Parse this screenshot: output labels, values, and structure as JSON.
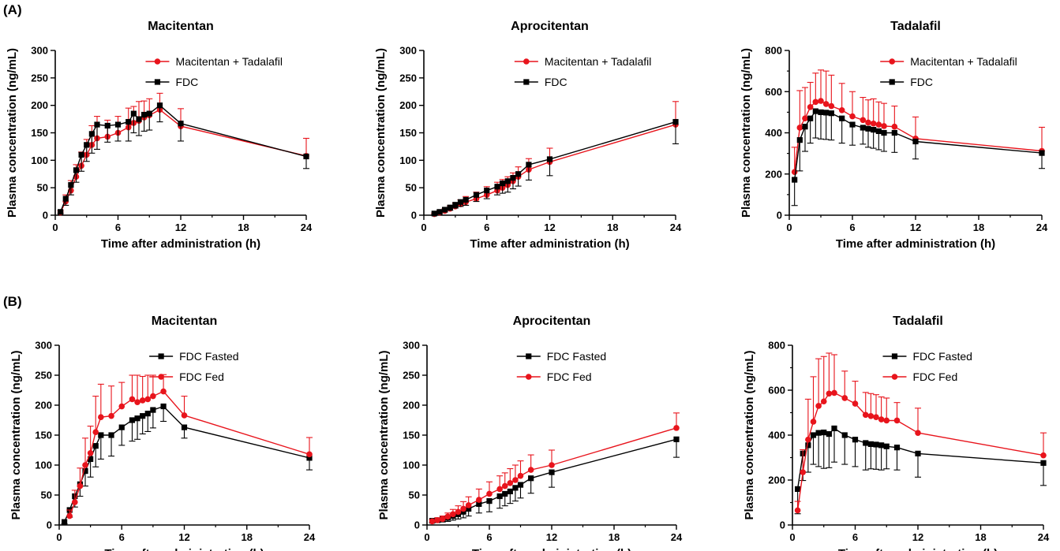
{
  "panel_labels": [
    "(A)",
    "(B)"
  ],
  "colors": {
    "red": "#e8141c",
    "black": "#000000"
  },
  "chart_data": [
    {
      "type": "line",
      "title": "Macitentan",
      "xlabel": "Time after administration  (h)",
      "ylabel": "Plasma concentration  (ng/mL)",
      "xlim": [
        0,
        24
      ],
      "ylim": [
        0,
        300
      ],
      "xticks": [
        0,
        6,
        12,
        18,
        24
      ],
      "yticks": [
        0,
        50,
        100,
        150,
        200,
        250,
        300
      ],
      "legend_position": "top-right",
      "series": [
        {
          "name": "Macitentan + Tadalafil",
          "color": "#e8141c",
          "marker": "circle",
          "error": "up",
          "x": [
            0.5,
            1,
            1.5,
            2,
            2.5,
            3,
            3.5,
            4,
            5,
            6,
            7,
            7.5,
            8,
            8.5,
            9,
            10,
            12,
            24
          ],
          "y": [
            5,
            25,
            45,
            70,
            90,
            110,
            128,
            140,
            143,
            150,
            160,
            168,
            172,
            178,
            182,
            192,
            162,
            108
          ],
          "err": [
            3,
            12,
            18,
            22,
            25,
            28,
            35,
            40,
            30,
            30,
            35,
            30,
            35,
            30,
            30,
            30,
            32,
            32
          ]
        },
        {
          "name": "FDC",
          "color": "#000000",
          "marker": "square",
          "error": "down",
          "x": [
            0.5,
            1,
            1.5,
            2,
            2.5,
            3,
            3.5,
            4,
            5,
            6,
            7,
            7.5,
            8,
            8.5,
            9,
            10,
            12,
            24
          ],
          "y": [
            6,
            30,
            55,
            82,
            110,
            128,
            148,
            165,
            163,
            165,
            170,
            185,
            175,
            183,
            185,
            200,
            167,
            107
          ],
          "err": [
            3,
            12,
            18,
            22,
            30,
            30,
            35,
            45,
            30,
            30,
            35,
            35,
            30,
            30,
            30,
            30,
            32,
            22
          ]
        }
      ]
    },
    {
      "type": "line",
      "title": "Aprocitentan",
      "xlabel": "Time after administration  (h)",
      "ylabel": "Plasma concentration  (ng/mL)",
      "xlim": [
        0,
        24
      ],
      "ylim": [
        0,
        300
      ],
      "xticks": [
        0,
        6,
        12,
        18,
        24
      ],
      "yticks": [
        0,
        50,
        100,
        150,
        200,
        250,
        300
      ],
      "legend_position": "top-right",
      "series": [
        {
          "name": "Macitentan + Tadalafil",
          "color": "#e8141c",
          "marker": "circle",
          "error": "up",
          "x": [
            1,
            1.5,
            2,
            2.5,
            3,
            3.5,
            4,
            5,
            6,
            7,
            7.5,
            8,
            8.5,
            9,
            10,
            12,
            24
          ],
          "y": [
            2,
            5,
            8,
            12,
            16,
            20,
            24,
            30,
            37,
            45,
            50,
            55,
            62,
            70,
            83,
            97,
            165
          ],
          "err": [
            2,
            3,
            4,
            5,
            6,
            8,
            10,
            12,
            15,
            15,
            15,
            15,
            15,
            18,
            20,
            25,
            42
          ]
        },
        {
          "name": "FDC",
          "color": "#000000",
          "marker": "square",
          "error": "down",
          "x": [
            1,
            1.5,
            2,
            2.5,
            3,
            3.5,
            4,
            5,
            6,
            7,
            7.5,
            8,
            8.5,
            9,
            10,
            12,
            24
          ],
          "y": [
            3,
            6,
            10,
            14,
            19,
            24,
            28,
            37,
            45,
            52,
            58,
            62,
            68,
            75,
            92,
            102,
            170
          ],
          "err": [
            2,
            3,
            4,
            5,
            6,
            8,
            10,
            12,
            15,
            15,
            18,
            20,
            20,
            22,
            28,
            30,
            40
          ]
        }
      ]
    },
    {
      "type": "line",
      "title": "Tadalafil",
      "xlabel": "Time after administration  (h)",
      "ylabel": "Plasma concentration  (ng/mL)",
      "xlim": [
        0,
        24
      ],
      "ylim": [
        0,
        800
      ],
      "xticks": [
        0,
        6,
        12,
        18,
        24
      ],
      "yticks": [
        0,
        200,
        400,
        600,
        800
      ],
      "legend_position": "top-right",
      "series": [
        {
          "name": "Macitentan + Tadalafil",
          "color": "#e8141c",
          "marker": "circle",
          "error": "up",
          "x": [
            0.5,
            1,
            1.5,
            2,
            2.5,
            3,
            3.5,
            4,
            5,
            6,
            7,
            7.5,
            8,
            8.5,
            9,
            10,
            12,
            24
          ],
          "y": [
            210,
            425,
            470,
            525,
            550,
            555,
            540,
            530,
            510,
            480,
            462,
            450,
            445,
            440,
            433,
            430,
            372,
            312
          ],
          "err": [
            120,
            180,
            150,
            120,
            140,
            150,
            160,
            150,
            130,
            120,
            110,
            110,
            120,
            110,
            110,
            100,
            105,
            115
          ]
        },
        {
          "name": "FDC",
          "color": "#000000",
          "marker": "square",
          "error": "down",
          "x": [
            0.5,
            1,
            1.5,
            2,
            2.5,
            3,
            3.5,
            4,
            5,
            6,
            7,
            7.5,
            8,
            8.5,
            9,
            10,
            12,
            24
          ],
          "y": [
            172,
            365,
            430,
            470,
            505,
            500,
            498,
            495,
            470,
            440,
            425,
            420,
            415,
            408,
            400,
            400,
            358,
            302
          ],
          "err": [
            125,
            150,
            120,
            120,
            130,
            130,
            130,
            130,
            120,
            100,
            80,
            90,
            90,
            90,
            90,
            95,
            85,
            75
          ]
        }
      ]
    },
    {
      "type": "line",
      "title": "Macitentan",
      "xlabel": "Time after administration  (h)",
      "ylabel": "Plasma concentration  (ng/mL)",
      "xlim": [
        0,
        24
      ],
      "ylim": [
        0,
        300
      ],
      "xticks": [
        0,
        6,
        12,
        18,
        24
      ],
      "yticks": [
        0,
        50,
        100,
        150,
        200,
        250,
        300
      ],
      "legend_position": "top-right",
      "series": [
        {
          "name": "FDC Fasted",
          "color": "#000000",
          "marker": "square",
          "error": "down",
          "x": [
            0.5,
            1,
            1.5,
            2,
            2.5,
            3,
            3.5,
            4,
            5,
            6,
            7,
            7.5,
            8,
            8.5,
            9,
            10,
            12,
            24
          ],
          "y": [
            5,
            25,
            48,
            68,
            90,
            110,
            132,
            150,
            150,
            163,
            175,
            178,
            182,
            186,
            192,
            198,
            163,
            112
          ],
          "err": [
            3,
            12,
            18,
            20,
            25,
            30,
            35,
            40,
            35,
            30,
            35,
            35,
            30,
            30,
            30,
            25,
            18,
            20
          ]
        },
        {
          "name": "FDC Fed",
          "color": "#e8141c",
          "marker": "circle",
          "error": "up",
          "x": [
            1,
            1.5,
            2,
            2.5,
            3,
            3.5,
            4,
            5,
            6,
            7,
            7.5,
            8,
            8.5,
            9,
            10,
            12,
            24
          ],
          "y": [
            15,
            38,
            65,
            100,
            120,
            155,
            180,
            182,
            198,
            210,
            205,
            208,
            210,
            215,
            223,
            183,
            118
          ],
          "err": [
            10,
            20,
            30,
            45,
            45,
            60,
            55,
            50,
            40,
            40,
            45,
            40,
            40,
            35,
            28,
            32,
            28
          ]
        }
      ]
    },
    {
      "type": "line",
      "title": "Aprocitentan",
      "xlabel": "Time after administration  (h)",
      "ylabel": "Plasma concentration  (ng/mL)",
      "xlim": [
        0,
        24
      ],
      "ylim": [
        0,
        300
      ],
      "xticks": [
        0,
        6,
        12,
        18,
        24
      ],
      "yticks": [
        0,
        50,
        100,
        150,
        200,
        250,
        300
      ],
      "legend_position": "top-right",
      "series": [
        {
          "name": "FDC Fasted",
          "color": "#000000",
          "marker": "square",
          "error": "down",
          "x": [
            0.5,
            1,
            1.5,
            2,
            2.5,
            3,
            3.5,
            4,
            5,
            6,
            7,
            7.5,
            8,
            8.5,
            9,
            10,
            12,
            24
          ],
          "y": [
            7,
            8,
            10,
            12,
            15,
            18,
            22,
            27,
            35,
            40,
            48,
            52,
            56,
            62,
            67,
            78,
            88,
            143
          ],
          "err": [
            3,
            4,
            5,
            6,
            7,
            8,
            10,
            12,
            15,
            18,
            20,
            20,
            20,
            22,
            22,
            25,
            25,
            30
          ]
        },
        {
          "name": "FDC Fed",
          "color": "#e8141c",
          "marker": "circle",
          "error": "up",
          "x": [
            0.5,
            1,
            1.5,
            2,
            2.5,
            3,
            3.5,
            4,
            5,
            6,
            7,
            7.5,
            8,
            8.5,
            9,
            10,
            12,
            24
          ],
          "y": [
            6,
            8,
            10,
            14,
            18,
            22,
            27,
            33,
            42,
            52,
            60,
            65,
            70,
            75,
            82,
            92,
            100,
            162
          ],
          "err": [
            3,
            4,
            5,
            6,
            8,
            10,
            12,
            14,
            18,
            20,
            22,
            22,
            24,
            25,
            25,
            25,
            25,
            25
          ]
        }
      ]
    },
    {
      "type": "line",
      "title": "Tadalafil",
      "xlabel": "Time after administration  (h)",
      "ylabel": "Plasma concentration  (ng/mL)",
      "xlim": [
        0,
        24
      ],
      "ylim": [
        0,
        800
      ],
      "xticks": [
        0,
        6,
        12,
        18,
        24
      ],
      "yticks": [
        0,
        200,
        400,
        600,
        800
      ],
      "legend_position": "top-right",
      "series": [
        {
          "name": "FDC Fasted",
          "color": "#000000",
          "marker": "square",
          "error": "down",
          "x": [
            0.5,
            1,
            1.5,
            2,
            2.5,
            3,
            3.5,
            4,
            5,
            6,
            7,
            7.5,
            8,
            8.5,
            9,
            10,
            12,
            24
          ],
          "y": [
            160,
            318,
            355,
            400,
            410,
            412,
            405,
            430,
            400,
            380,
            365,
            360,
            358,
            355,
            350,
            345,
            318,
            276
          ],
          "err": [
            110,
            120,
            120,
            130,
            150,
            160,
            150,
            150,
            130,
            120,
            120,
            110,
            110,
            110,
            100,
            100,
            105,
            100
          ]
        },
        {
          "name": "FDC Fed",
          "color": "#e8141c",
          "marker": "circle",
          "error": "up",
          "x": [
            0.5,
            1,
            1.5,
            2,
            2.5,
            3,
            3.5,
            4,
            5,
            6,
            7,
            7.5,
            8,
            8.5,
            9,
            10,
            12,
            24
          ],
          "y": [
            65,
            235,
            380,
            460,
            530,
            550,
            585,
            588,
            565,
            540,
            490,
            485,
            480,
            470,
            465,
            465,
            410,
            310
          ],
          "err": [
            40,
            100,
            180,
            200,
            210,
            200,
            180,
            170,
            120,
            100,
            100,
            100,
            100,
            100,
            100,
            80,
            110,
            100
          ]
        }
      ]
    }
  ]
}
